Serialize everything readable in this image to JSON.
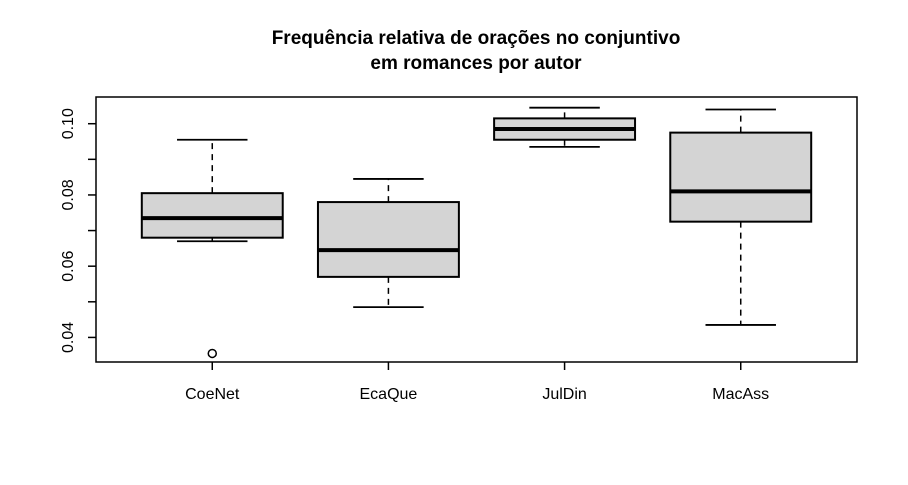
{
  "title": {
    "line1": "Frequência relativa de orações no conjuntivo",
    "line2": "em romances por autor"
  },
  "chart_data": {
    "type": "boxplot",
    "title": "Frequência relativa de orações no conjuntivo em romances por autor",
    "categories": [
      "CoeNet",
      "EcaQue",
      "JulDin",
      "MacAss"
    ],
    "series": [
      {
        "name": "CoeNet",
        "whisker_low": 0.067,
        "q1": 0.068,
        "median": 0.0735,
        "q3": 0.0805,
        "whisker_high": 0.0955,
        "outliers": [
          0.0355
        ]
      },
      {
        "name": "EcaQue",
        "whisker_low": 0.0485,
        "q1": 0.057,
        "median": 0.0645,
        "q3": 0.078,
        "whisker_high": 0.0845,
        "outliers": []
      },
      {
        "name": "JulDin",
        "whisker_low": 0.0935,
        "q1": 0.0955,
        "median": 0.0985,
        "q3": 0.1015,
        "whisker_high": 0.1045,
        "outliers": []
      },
      {
        "name": "MacAss",
        "whisker_low": 0.0435,
        "q1": 0.0725,
        "median": 0.081,
        "q3": 0.0975,
        "whisker_high": 0.104,
        "outliers": []
      }
    ],
    "ylim": [
      0.0331,
      0.1075
    ],
    "yticks": [
      0.04,
      0.05,
      0.06,
      0.07,
      0.08,
      0.09,
      0.1
    ],
    "ytick_labeled": [
      {
        "value": 0.04,
        "label": "0.04"
      },
      {
        "value": 0.06,
        "label": "0.06"
      },
      {
        "value": 0.08,
        "label": "0.08"
      },
      {
        "value": 0.1,
        "label": "0.10"
      }
    ],
    "xlabel": "",
    "ylabel": "",
    "grid": false,
    "legend": "none",
    "colors": {
      "box_fill": "#d4d4d4",
      "line": "#000000",
      "background": "#ffffff"
    }
  }
}
